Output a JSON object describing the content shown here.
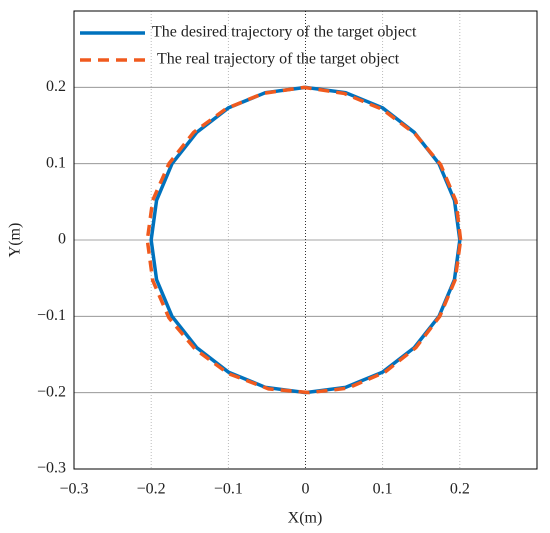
{
  "chart_data": {
    "type": "line",
    "xlabel": "X(m)",
    "ylabel": "Y(m)",
    "xlim": [
      -0.3,
      0.3
    ],
    "ylim": [
      -0.3,
      0.3
    ],
    "xticks": [
      {
        "value": -0.3,
        "label": "−0.3"
      },
      {
        "value": -0.2,
        "label": "−0.2"
      },
      {
        "value": -0.1,
        "label": "−0.1"
      },
      0,
      0.1,
      0.2
    ],
    "yticks": [
      {
        "value": -0.3,
        "label": "−0.3"
      },
      {
        "value": -0.2,
        "label": "−0.2"
      },
      {
        "value": -0.1,
        "label": "−0.1"
      },
      0,
      0.1,
      0.2
    ],
    "grid": true,
    "legend": "top",
    "series": [
      {
        "name": "The desired trajectory of the target object",
        "color": "#0072bd",
        "dash": false,
        "x": [
          0.2,
          0.193,
          0.173,
          0.141,
          0.1,
          0.052,
          0,
          -0.052,
          -0.1,
          -0.141,
          -0.173,
          -0.193,
          -0.2,
          -0.193,
          -0.173,
          -0.141,
          -0.1,
          -0.052,
          0,
          0.052,
          0.1,
          0.141,
          0.173,
          0.193,
          0.2
        ],
        "values": [
          0,
          0.052,
          0.1,
          0.141,
          0.173,
          0.193,
          0.2,
          0.193,
          0.173,
          0.141,
          0.1,
          0.052,
          0,
          -0.052,
          -0.1,
          -0.141,
          -0.173,
          -0.193,
          -0.2,
          -0.193,
          -0.173,
          -0.141,
          -0.1,
          -0.052,
          0
        ]
      },
      {
        "name": "The real trajectory of the target object",
        "color": "#f05a1e",
        "dash": true,
        "x": [
          0.201,
          0.195,
          0.175,
          0.142,
          0.1,
          0.05,
          -0.002,
          -0.055,
          -0.103,
          -0.145,
          -0.177,
          -0.198,
          -0.205,
          -0.198,
          -0.177,
          -0.143,
          -0.1,
          -0.048,
          0.005,
          0.055,
          0.103,
          0.143,
          0.174,
          0.194,
          0.201
        ],
        "values": [
          0,
          0.051,
          0.099,
          0.139,
          0.171,
          0.192,
          0.2,
          0.192,
          0.172,
          0.141,
          0.1,
          0.052,
          0,
          -0.053,
          -0.102,
          -0.143,
          -0.175,
          -0.195,
          -0.2,
          -0.194,
          -0.173,
          -0.141,
          -0.1,
          -0.052,
          0
        ]
      }
    ]
  }
}
